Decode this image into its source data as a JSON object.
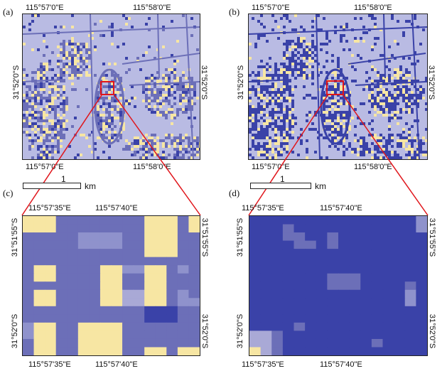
{
  "panels": {
    "a": {
      "label": "(a)",
      "top_ticks": [
        "115°57'0\"E",
        "115°58'0\"E"
      ],
      "bottom_ticks": [
        "115°57'0\"E",
        "115°58'0\"E"
      ],
      "left_tick": "31°52'0\"S",
      "right_tick": "31°52'0\"S"
    },
    "b": {
      "label": "(b)",
      "top_ticks": [
        "115°57'0\"E",
        "115°58'0\"E"
      ],
      "bottom_ticks": [
        "115°57'0\"E",
        "115°58'0\"E"
      ],
      "left_tick": "31°52'0\"S",
      "right_tick": "31°52'0\"S"
    },
    "c": {
      "label": "(c)",
      "top_ticks": [
        "115°57'35\"E",
        "115°57'40\"E"
      ],
      "bottom_ticks": [
        "115°57'35\"E",
        "115°57'40\"E"
      ],
      "left_ticks": [
        "31°51'55\"S",
        "31°52'0\"S"
      ],
      "right_ticks": [
        "31°51'55\"S",
        "31°52'0\"S"
      ]
    },
    "d": {
      "label": "(d)",
      "top_ticks": [
        "115°57'35\"E",
        "115°57'40\"E"
      ],
      "bottom_ticks": [
        "115°57'35\"E",
        "115°57'40\"E"
      ],
      "left_ticks": [
        "31°51'55\"S",
        "31°52'0\"S"
      ],
      "right_ticks": [
        "31°51'55\"S",
        "31°52'0\"S"
      ]
    }
  },
  "scalebar": {
    "value": "1",
    "unit": "km"
  },
  "colors": {
    "background_class": "#b9bbe3",
    "low_class": "#6c6fb8",
    "dark_class": "#3a42a8",
    "bright_class": "#f7e6a3",
    "highlight": "#e0151b",
    "frame": "#222222"
  },
  "grids": {
    "c": [
      "YYYMMMMMMMMYYYMY",
      "YYYMMMMMMMMYYYMY",
      "MMMMMLLLLMMYYYMM",
      "MMMMMLLLLMMYYYMM",
      "MMMMMMMMMMMYYYMM",
      "MMMMMMMMMMMMMMMM",
      "MYYMMMMYYLLYYMLM",
      "MYYMMMMYYMMYYMMM",
      "MMMMMMMYYMMYYMMM",
      "MYYMMMMYYPPYYMLM",
      "MYYMMMMYYPPYYMLL",
      "MMMMMMMMMMMDDDMM",
      "MMMMMMMMMMMDDDMM",
      "LYYMMYYYYMMMMMMM",
      "LYYMMYYYYMMMMMMM",
      "MYYMMYYYYMMMMMMM",
      "MYYMMYYYYMMYYMYY"
    ],
    "d": [
      "DDDDDDDDDDDDDDDL",
      "DDDMDDDDDDDDDDDL",
      "DDDMMDDMDDDDDDDD",
      "DDDDMMDMDDDDDDDD",
      "DDDDDDDDDDDDDDDD",
      "DDDDDDDDDDDDDDDD",
      "DDDDDDDDDDDDDDDD",
      "DDDDDDDMMMDDDDDD",
      "DDDDDDDMMMDDDDMD",
      "DDDDDDDDDDDDDDLD",
      "DDDDDDDDDDDDDDLD",
      "DDDDDDDDDDDDDDDD",
      "DDDDDDDDDDDDDDDD",
      "DDDDMDDDDDDDDDDD",
      "PPMDDDDDDDDDDDDD",
      "PPMDDDDDDDDMDDDD",
      "YPMDDDDDDDDDDDDD"
    ]
  }
}
